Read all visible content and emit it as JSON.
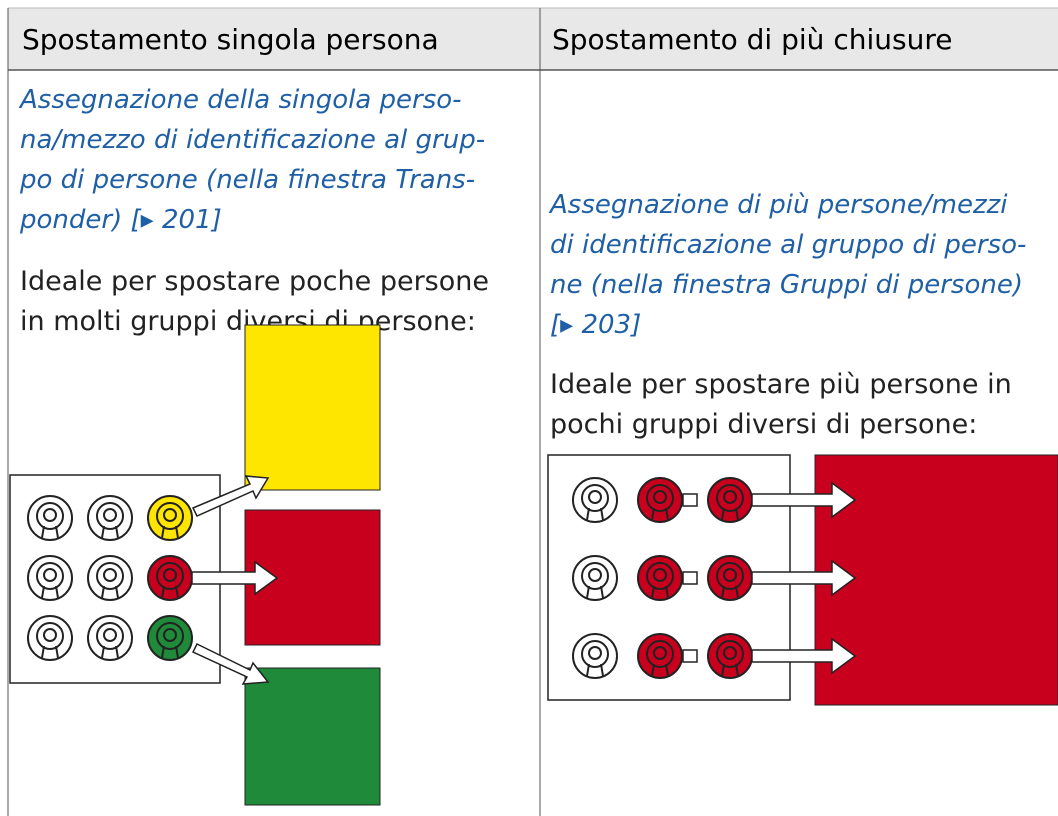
{
  "table": {
    "header": [
      "Spostamento singola persona",
      "Spostamento di più chiusure"
    ],
    "rows": [
      [
        {
          "link_lines": [
            "Assegnazione della singola perso-",
            "na/mezzo di identificazione al grup-",
            "po di persone (nella finestra Trans-",
            "ponder) [▸ 201]"
          ],
          "text_lines": [
            "Ideale per spostare poche persone",
            "in molti gruppi diversi di persone:"
          ]
        },
        {
          "link_lines": [
            "Assegnazione di più persone/mezzi",
            "di identificazione al gruppo di perso-",
            "ne (nella finestra Gruppi di persone)",
            "[▸ 203]"
          ],
          "text_lines": [
            "Ideale per spostare più persone in",
            "pochi gruppi diversi di persone:"
          ]
        }
      ]
    ]
  }
}
